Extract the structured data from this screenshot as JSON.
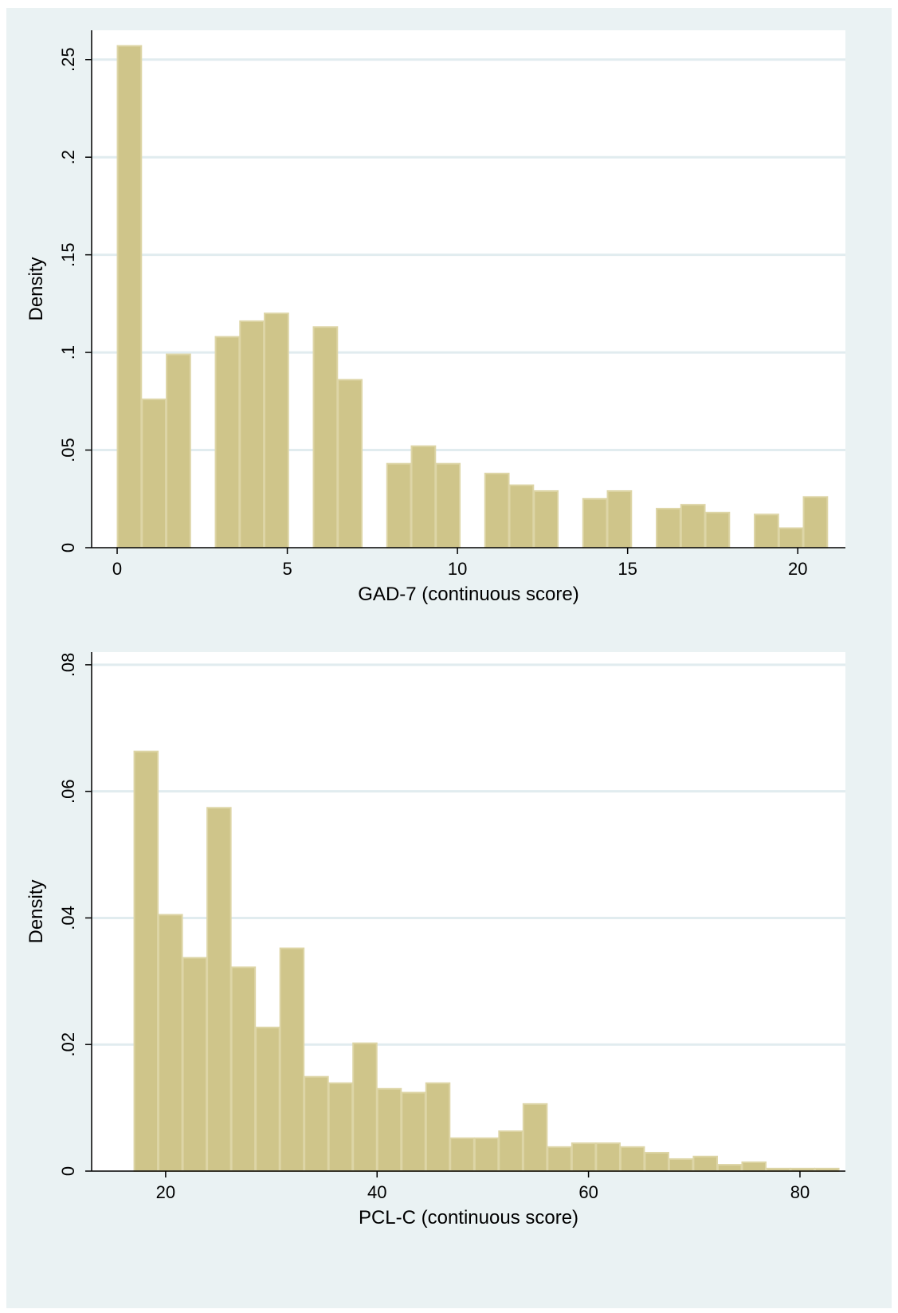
{
  "chart_data": [
    {
      "type": "bar",
      "subtype": "histogram",
      "xlabel": "GAD-7 (continuous score)",
      "ylabel": "Density",
      "xlim": [
        -0.75,
        21.4
      ],
      "ylim": [
        0,
        0.265
      ],
      "xticks": [
        0,
        5,
        10,
        15,
        20
      ],
      "xtick_labels": [
        "0",
        "5",
        "10",
        "15",
        "20"
      ],
      "yticks": [
        0,
        0.05,
        0.1,
        0.15,
        0.2,
        0.25
      ],
      "ytick_labels": [
        "0",
        ".05",
        ".1",
        ".15",
        ".2",
        ".25"
      ],
      "grid": "horizontal",
      "bin_width": 0.72,
      "bins": [
        {
          "x": 0.0,
          "density": 0.257
        },
        {
          "x": 0.72,
          "density": 0.076
        },
        {
          "x": 1.44,
          "density": 0.099
        },
        {
          "x": 2.88,
          "density": 0.108
        },
        {
          "x": 3.6,
          "density": 0.116
        },
        {
          "x": 4.32,
          "density": 0.12
        },
        {
          "x": 5.76,
          "density": 0.113
        },
        {
          "x": 6.48,
          "density": 0.086
        },
        {
          "x": 7.92,
          "density": 0.043
        },
        {
          "x": 8.64,
          "density": 0.052
        },
        {
          "x": 9.36,
          "density": 0.043
        },
        {
          "x": 10.8,
          "density": 0.038
        },
        {
          "x": 11.52,
          "density": 0.032
        },
        {
          "x": 12.24,
          "density": 0.029
        },
        {
          "x": 13.68,
          "density": 0.025
        },
        {
          "x": 14.4,
          "density": 0.029
        },
        {
          "x": 15.84,
          "density": 0.02
        },
        {
          "x": 16.56,
          "density": 0.022
        },
        {
          "x": 17.28,
          "density": 0.018
        },
        {
          "x": 18.72,
          "density": 0.017
        },
        {
          "x": 19.44,
          "density": 0.01
        },
        {
          "x": 20.16,
          "density": 0.026
        }
      ]
    },
    {
      "type": "bar",
      "subtype": "histogram",
      "xlabel": "PCL-C (continuous score)",
      "ylabel": "Density",
      "xlim": [
        13,
        84.3
      ],
      "ylim": [
        0,
        0.082
      ],
      "xticks": [
        20,
        40,
        60,
        80
      ],
      "xtick_labels": [
        "20",
        "40",
        "60",
        "80"
      ],
      "yticks": [
        0,
        0.02,
        0.04,
        0.06,
        0.08
      ],
      "ytick_labels": [
        "0",
        ".02",
        ".04",
        ".06",
        ".08"
      ],
      "grid": "horizontal",
      "bin_width": 2.3,
      "bins": [
        {
          "x": 17.0,
          "density": 0.0663
        },
        {
          "x": 19.3,
          "density": 0.0405
        },
        {
          "x": 21.6,
          "density": 0.0337
        },
        {
          "x": 23.9,
          "density": 0.0574
        },
        {
          "x": 26.2,
          "density": 0.0322
        },
        {
          "x": 28.5,
          "density": 0.0227
        },
        {
          "x": 30.8,
          "density": 0.0352
        },
        {
          "x": 33.1,
          "density": 0.0149
        },
        {
          "x": 35.4,
          "density": 0.0139
        },
        {
          "x": 37.7,
          "density": 0.0202
        },
        {
          "x": 40.0,
          "density": 0.013
        },
        {
          "x": 42.3,
          "density": 0.0124
        },
        {
          "x": 44.6,
          "density": 0.0139
        },
        {
          "x": 46.9,
          "density": 0.0052
        },
        {
          "x": 49.2,
          "density": 0.0052
        },
        {
          "x": 51.5,
          "density": 0.0063
        },
        {
          "x": 53.8,
          "density": 0.0106
        },
        {
          "x": 56.1,
          "density": 0.0038
        },
        {
          "x": 58.4,
          "density": 0.0044
        },
        {
          "x": 60.7,
          "density": 0.0044
        },
        {
          "x": 63.0,
          "density": 0.0038
        },
        {
          "x": 65.3,
          "density": 0.0029
        },
        {
          "x": 67.6,
          "density": 0.0019
        },
        {
          "x": 69.9,
          "density": 0.0023
        },
        {
          "x": 72.2,
          "density": 0.001
        },
        {
          "x": 74.5,
          "density": 0.0014
        },
        {
          "x": 76.8,
          "density": 0.0004
        },
        {
          "x": 79.1,
          "density": 0.0004
        },
        {
          "x": 81.4,
          "density": 0.0004
        }
      ]
    }
  ],
  "style": {
    "bar_fill": "#cfc58a",
    "bar_edge": "#ddd5a6",
    "grid_color": "#e1ecef",
    "plot_bg": "#ffffff",
    "figure_bg": "#eaf2f3",
    "axis_color": "#000000"
  }
}
